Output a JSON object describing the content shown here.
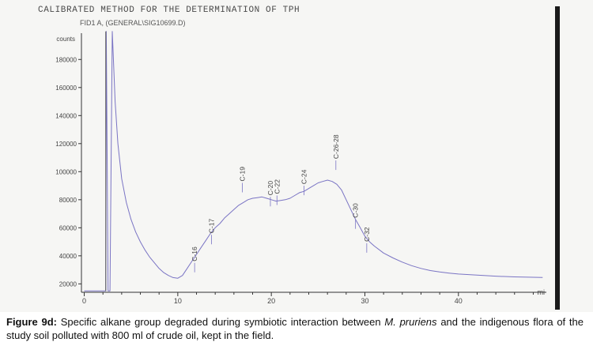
{
  "header": {
    "title": "CALIBRATED METHOD FOR THE DETERMINATION OF TPH",
    "file_label": "FID1 A, (GENERAL\\SIG10699.D)"
  },
  "caption": {
    "label": "Figure 9d:",
    "text_before": " Specific alkane group degraded during symbiotic interaction between ",
    "species": "M. pruriens",
    "text_after": " and the indigenous flora of the study soil polluted with 800 ml of crude oil, kept in the field."
  },
  "chart_data": {
    "type": "line",
    "title": "",
    "xlabel": "",
    "ylabel": "counts",
    "x_unit_label": "mi",
    "xlim": [
      -0.3,
      49.4
    ],
    "ylim": [
      14000,
      201000
    ],
    "x_ticks": [
      0,
      10,
      20,
      30,
      40
    ],
    "y_ticks": [
      20000,
      40000,
      60000,
      80000,
      100000,
      120000,
      140000,
      160000,
      180000
    ],
    "y_tick_labels": [
      "20000",
      "40000",
      "60000",
      "80000",
      "100000",
      "120000",
      "140000",
      "160000",
      "180000"
    ],
    "series": [
      {
        "x": [
          0.0,
          2.3,
          2.35,
          2.55,
          2.75,
          3.0,
          3.3,
          3.6,
          4.0,
          4.5,
          5.0,
          5.5,
          6.0,
          6.5,
          7.0,
          7.5,
          8.0,
          8.5,
          9.0,
          9.5,
          10.0,
          10.5,
          11.0,
          11.5,
          12.0,
          12.5,
          13.0,
          13.5,
          14.0,
          14.5,
          15.0,
          15.5,
          16.0,
          16.5,
          17.0,
          17.5,
          18.0,
          18.5,
          19.0,
          19.5,
          20.0,
          20.5,
          21.0,
          21.5,
          22.0,
          22.5,
          23.0,
          23.5,
          24.0,
          24.5,
          25.0,
          25.5,
          26.0,
          26.5,
          27.0,
          27.5,
          28.0,
          28.5,
          29.0,
          29.5,
          30.0,
          30.5,
          31.0,
          32.0,
          33.0,
          34.0,
          35.0,
          36.0,
          37.0,
          38.0,
          39.0,
          40.0,
          42.0,
          44.0,
          46.0,
          48.0,
          49.0
        ],
        "y": [
          15000,
          15000,
          200000,
          15000,
          15000,
          200000,
          150000,
          120000,
          95000,
          78000,
          66000,
          57000,
          50000,
          44000,
          39000,
          35000,
          31000,
          28000,
          26000,
          24500,
          24000,
          26000,
          31000,
          36000,
          41000,
          46000,
          51000,
          56000,
          60000,
          63000,
          67000,
          70000,
          73000,
          76000,
          78000,
          80000,
          81000,
          81500,
          82000,
          81000,
          80000,
          79000,
          79500,
          80000,
          81000,
          83000,
          85000,
          86000,
          88000,
          90000,
          92000,
          93000,
          94000,
          93000,
          91000,
          87000,
          80000,
          73000,
          66000,
          60000,
          54000,
          50000,
          47000,
          42000,
          38500,
          35500,
          33000,
          31000,
          29500,
          28500,
          27700,
          27000,
          26200,
          25500,
          25000,
          24700,
          24600
        ],
        "color": "#7a74c4"
      }
    ],
    "peaks": [
      {
        "label": "C-16",
        "x": 11.8,
        "y": 35000
      },
      {
        "label": "C-17",
        "x": 13.6,
        "y": 55000
      },
      {
        "label": "C-19",
        "x": 16.9,
        "y": 92000
      },
      {
        "label": "C-20",
        "x": 19.9,
        "y": 82000
      },
      {
        "label": "C-22",
        "x": 20.6,
        "y": 83000
      },
      {
        "label": "C-24",
        "x": 23.5,
        "y": 90000
      },
      {
        "label": "C-26-28",
        "x": 26.9,
        "y": 108000
      },
      {
        "label": "C-30",
        "x": 29.0,
        "y": 66000
      },
      {
        "label": "C-32",
        "x": 30.2,
        "y": 49000
      }
    ],
    "colors": {
      "trace": "#7a74c4",
      "axis": "#333333",
      "labels": "#444444"
    }
  }
}
